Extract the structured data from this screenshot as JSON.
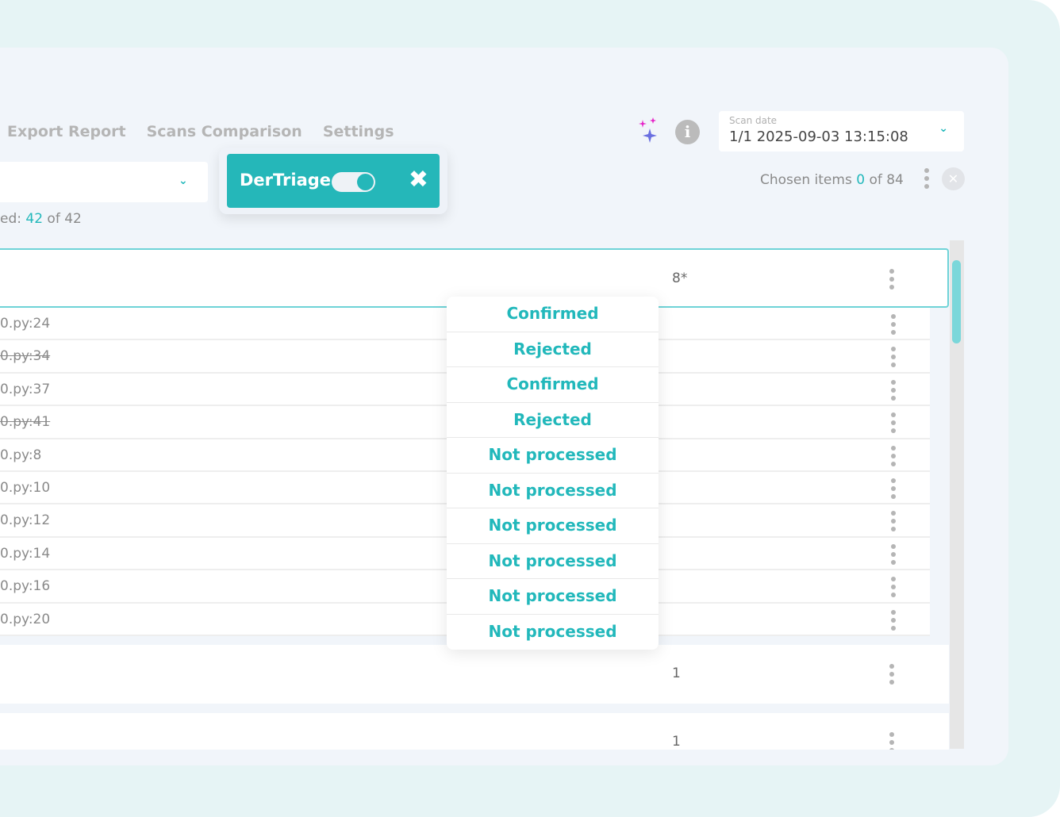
{
  "nav": [
    "Export Report",
    "Scans Comparison",
    "Settings"
  ],
  "count": {
    "prefix": "ed: ",
    "shown": "42",
    "of": " of  42"
  },
  "triage": {
    "label": "DerTriage",
    "toggle_on": true,
    "close": "✖"
  },
  "scan_date": {
    "label": "Scan date",
    "value": "1/1 2025-09-03 13:15:08"
  },
  "chosen": {
    "prefix": "Chosen items ",
    "count": "0",
    "suffix": " of 84"
  },
  "group1": {
    "count": "8*"
  },
  "rows": [
    {
      "loc": "0.py:24",
      "strike": false
    },
    {
      "loc": "0.py:34",
      "strike": true
    },
    {
      "loc": "0.py:37",
      "strike": false
    },
    {
      "loc": "0.py:41",
      "strike": true
    },
    {
      "loc": "0.py:8",
      "strike": false
    },
    {
      "loc": "0.py:10",
      "strike": false
    },
    {
      "loc": "0.py:12",
      "strike": false
    },
    {
      "loc": "0.py:14",
      "strike": false
    },
    {
      "loc": "0.py:16",
      "strike": false
    },
    {
      "loc": "0.py:20",
      "strike": false
    }
  ],
  "statuses": [
    "Confirmed",
    "Rejected",
    "Confirmed",
    "Rejected",
    "Not processed",
    "Not processed",
    "Not processed",
    "Not processed",
    "Not processed",
    "Not processed"
  ],
  "group2": {
    "count": "1"
  },
  "group3": {
    "count": "1"
  },
  "colors": {
    "accent": "#25b7b9"
  }
}
